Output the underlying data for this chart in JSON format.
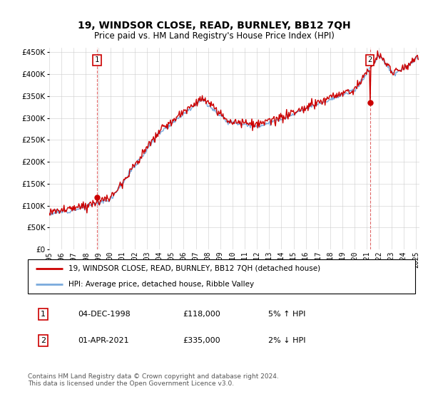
{
  "title": "19, WINDSOR CLOSE, READ, BURNLEY, BB12 7QH",
  "subtitle": "Price paid vs. HM Land Registry's House Price Index (HPI)",
  "legend_line1": "19, WINDSOR CLOSE, READ, BURNLEY, BB12 7QH (detached house)",
  "legend_line2": "HPI: Average price, detached house, Ribble Valley",
  "annotation1_date": "04-DEC-1998",
  "annotation1_price": "£118,000",
  "annotation1_hpi": "5% ↑ HPI",
  "annotation2_date": "01-APR-2021",
  "annotation2_price": "£335,000",
  "annotation2_hpi": "2% ↓ HPI",
  "footer": "Contains HM Land Registry data © Crown copyright and database right 2024.\nThis data is licensed under the Open Government Licence v3.0.",
  "red_color": "#cc0000",
  "blue_color": "#7aaadd",
  "ylim_min": 0,
  "ylim_max": 460000,
  "yticks": [
    0,
    50000,
    100000,
    150000,
    200000,
    250000,
    300000,
    350000,
    400000,
    450000
  ],
  "ytick_labels": [
    "£0",
    "£50K",
    "£100K",
    "£150K",
    "£200K",
    "£250K",
    "£300K",
    "£350K",
    "£400K",
    "£450K"
  ],
  "sale1_x": 1998.92,
  "sale1_y": 118000,
  "sale2_x": 2021.25,
  "sale2_y": 335000,
  "xmin": 1995,
  "xmax": 2025.3
}
